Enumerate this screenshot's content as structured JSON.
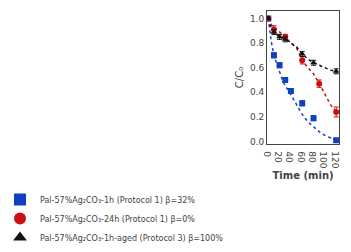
{
  "chart_data": {
    "type": "line",
    "xlabel": "Time (min)",
    "ylabel": "C/C₀",
    "xlim": [
      -2,
      125
    ],
    "ylim": [
      -0.02,
      1.06
    ],
    "xticks": [
      0,
      20,
      40,
      60,
      80,
      100,
      120
    ],
    "yticks": [
      {
        "value": 0.0,
        "label": "0.0"
      },
      0.2,
      0.4,
      0.6,
      0.8,
      {
        "value": 1.0,
        "label": "1.0"
      }
    ],
    "grid": false,
    "legend": "lower left",
    "series": [
      {
        "type": "line",
        "color": "#1040c0",
        "line_style": "dotted",
        "x": [
          0,
          5,
          10,
          15,
          20,
          25,
          30,
          35,
          40,
          50,
          60,
          70,
          80,
          90,
          100,
          110,
          120
        ],
        "values": [
          1.0,
          0.82,
          0.7,
          0.63,
          0.57,
          0.5,
          0.45,
          0.42,
          0.38,
          0.3,
          0.22,
          0.16,
          0.12,
          0.08,
          0.05,
          0.03,
          0.01
        ]
      },
      {
        "type": "line",
        "color": "#cc1010",
        "line_style": "dotted",
        "x": [
          0,
          5,
          10,
          15,
          20,
          30,
          40,
          50,
          60,
          70,
          80,
          90,
          100,
          110,
          120
        ],
        "values": [
          1.0,
          0.96,
          0.91,
          0.9,
          0.89,
          0.85,
          0.8,
          0.76,
          0.66,
          0.6,
          0.55,
          0.47,
          0.38,
          0.3,
          0.24
        ]
      },
      {
        "type": "line",
        "color": "#111111",
        "line_style": "dotted",
        "x": [
          0,
          5,
          10,
          15,
          20,
          30,
          40,
          50,
          60,
          70,
          80,
          90,
          100,
          110,
          120
        ],
        "values": [
          1.0,
          0.92,
          0.89,
          0.87,
          0.85,
          0.83,
          0.8,
          0.77,
          0.71,
          0.67,
          0.64,
          0.62,
          0.6,
          0.58,
          0.57
        ]
      },
      {
        "type": "scatter",
        "name": "Pal-57%Ag₂CO₃-1h (Protocol 1) β=32%",
        "color": "#1040c0",
        "marker": "square",
        "x": [
          0,
          10,
          20,
          30,
          40,
          60,
          80,
          120
        ],
        "values": [
          1.0,
          0.7,
          0.62,
          0.5,
          0.41,
          0.31,
          0.19,
          0.01
        ],
        "yerr": [
          0.01,
          0.02,
          0.02,
          0.02,
          0.02,
          0.02,
          0.02,
          0.01
        ]
      },
      {
        "type": "scatter",
        "name": "Pal-57%Ag₂CO₃-24h (Protocol 1) β=0%",
        "color": "#cc1010",
        "marker": "circle",
        "x": [
          0,
          10,
          30,
          60,
          90,
          120
        ],
        "values": [
          1.0,
          0.91,
          0.85,
          0.66,
          0.47,
          0.24
        ],
        "yerr": [
          0.01,
          0.03,
          0.02,
          0.03,
          0.03,
          0.04
        ]
      },
      {
        "type": "scatter",
        "name": "Pal-57%Ag₂CO₃-1h-aged (Protocol 3) β=100%",
        "color": "#111111",
        "marker": "triangle",
        "x": [
          0,
          10,
          20,
          30,
          60,
          80,
          120
        ],
        "values": [
          1.0,
          0.89,
          0.85,
          0.83,
          0.71,
          0.64,
          0.57
        ],
        "yerr": [
          0.01,
          0.02,
          0.02,
          0.02,
          0.02,
          0.02,
          0.02
        ]
      }
    ]
  }
}
